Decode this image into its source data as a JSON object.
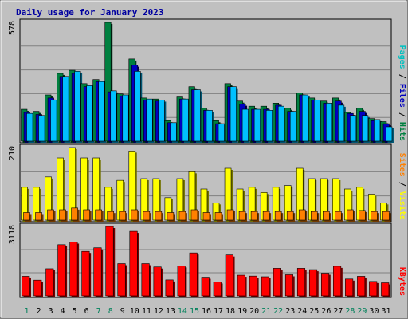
{
  "chart_data": {
    "type": "bar",
    "title": "Daily usage for January 2023",
    "days": [
      "1",
      "2",
      "3",
      "4",
      "5",
      "6",
      "7",
      "8",
      "9",
      "10",
      "11",
      "12",
      "13",
      "14",
      "15",
      "16",
      "17",
      "18",
      "19",
      "20",
      "21",
      "22",
      "23",
      "24",
      "25",
      "26",
      "27",
      "28",
      "29",
      "30",
      "31"
    ],
    "weekend_days": [
      "1",
      "7",
      "8",
      "14",
      "15",
      "21",
      "22",
      "28",
      "29"
    ],
    "panels": [
      {
        "id": "top",
        "max_label": "578",
        "ylim": [
          0,
          578
        ],
        "right_label_parts": [
          {
            "text": "Pages",
            "color": "#00c0c0"
          },
          {
            "text": " / ",
            "color": "#000000"
          },
          {
            "text": "Files",
            "color": "#0000c0"
          },
          {
            "text": " / ",
            "color": "#000000"
          },
          {
            "text": "Hits",
            "color": "#008040"
          }
        ],
        "series": [
          {
            "key": "hits",
            "color": "#008040",
            "values": [
              155,
              145,
              225,
              330,
              345,
              280,
              300,
              578,
              230,
              400,
              210,
              205,
              100,
              215,
              265,
              160,
              100,
              280,
              195,
              170,
              170,
              185,
              160,
              235,
              210,
              195,
              210,
              140,
              160,
              110,
              95
            ]
          },
          {
            "key": "files",
            "color": "#0000c0",
            "values": [
              140,
              130,
              210,
              315,
              330,
              265,
              290,
              240,
              220,
              370,
              200,
              195,
              90,
              205,
              250,
              150,
              85,
              265,
              180,
              155,
              155,
              175,
              145,
              225,
              200,
              185,
              195,
              135,
              145,
              100,
              85
            ]
          },
          {
            "key": "pages",
            "color": "#00c0ff",
            "values": [
              135,
              125,
              200,
              315,
              340,
              270,
              290,
              245,
              225,
              340,
              205,
              200,
              90,
              205,
              250,
              150,
              85,
              265,
              155,
              155,
              150,
              170,
              145,
              225,
              200,
              185,
              175,
              125,
              125,
              105,
              70
            ]
          }
        ]
      },
      {
        "id": "middle",
        "max_label": "210",
        "ylim": [
          0,
          210
        ],
        "right_label_parts": [
          {
            "text": "Sites",
            "color": "#ff8000"
          },
          {
            "text": " / ",
            "color": "#000000"
          },
          {
            "text": "Visits",
            "color": "#ffff00"
          }
        ],
        "series": [
          {
            "key": "visits",
            "color": "#ffff00",
            "values": [
              95,
              95,
              125,
              180,
              210,
              180,
              180,
              95,
              115,
              200,
              120,
              120,
              65,
              120,
              140,
              90,
              50,
              150,
              90,
              95,
              80,
              95,
              100,
              150,
              120,
              120,
              120,
              90,
              95,
              75,
              50
            ]
          },
          {
            "key": "sites",
            "color": "#ff8000",
            "values": [
              22,
              22,
              30,
              30,
              35,
              30,
              30,
              25,
              25,
              30,
              25,
              25,
              22,
              25,
              30,
              22,
              22,
              30,
              25,
              25,
              25,
              25,
              25,
              30,
              25,
              25,
              25,
              30,
              28,
              25,
              25
            ]
          }
        ]
      },
      {
        "id": "bottom",
        "max_label": "3118",
        "ylim": [
          0,
          3118
        ],
        "right_label_parts": [
          {
            "text": "KBytes",
            "color": "#ff0000"
          }
        ],
        "series": [
          {
            "key": "kbytes",
            "color": "#ff0000",
            "values": [
              880,
              710,
              1220,
              2300,
              2420,
              2000,
              2160,
              3118,
              1450,
              2900,
              1450,
              1300,
              720,
              1350,
              1930,
              840,
              630,
              1840,
              930,
              890,
              860,
              1240,
              950,
              1240,
              1180,
              1020,
              1330,
              760,
              880,
              650,
              590
            ]
          }
        ]
      }
    ]
  }
}
